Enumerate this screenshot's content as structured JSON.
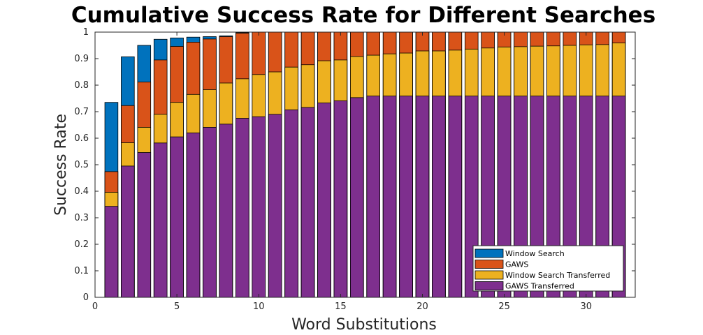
{
  "chart_data": {
    "type": "bar",
    "stacked": false,
    "overlay": true,
    "title": "Cumulative Success Rate for Different Searches",
    "xlabel": "Word Substitutions",
    "ylabel": "Success Rate",
    "xlim": [
      0,
      33
    ],
    "ylim": [
      0,
      1
    ],
    "xticks": [
      0,
      5,
      10,
      15,
      20,
      25,
      30
    ],
    "yticks": [
      0,
      0.1,
      0.2,
      0.3,
      0.4,
      0.5,
      0.6,
      0.7,
      0.8,
      0.9,
      1
    ],
    "grid": false,
    "legend_position": "bottom-right",
    "x": [
      1,
      2,
      3,
      4,
      5,
      6,
      7,
      8,
      9,
      10,
      11,
      12,
      13,
      14,
      15,
      16,
      17,
      18,
      19,
      20,
      21,
      22,
      23,
      24,
      25,
      26,
      27,
      28,
      29,
      30,
      31,
      32
    ],
    "series": [
      {
        "name": "Window Search",
        "color": "#0072BD",
        "values": [
          0.735,
          0.907,
          0.95,
          0.973,
          0.978,
          0.981,
          0.983,
          0.986,
          0.998,
          1,
          1,
          1,
          1,
          1,
          1,
          1,
          1,
          1,
          1,
          1,
          1,
          1,
          1,
          1,
          1,
          1,
          1,
          1,
          1,
          1,
          1,
          1
        ]
      },
      {
        "name": "GAWS",
        "color": "#D95319",
        "values": [
          0.474,
          0.723,
          0.812,
          0.895,
          0.946,
          0.962,
          0.974,
          0.983,
          0.996,
          1,
          1,
          1,
          1,
          1,
          1,
          1,
          1,
          1,
          1,
          1,
          1,
          1,
          1,
          1,
          1,
          1,
          1,
          1,
          1,
          1,
          1,
          1
        ]
      },
      {
        "name": "Window Search Transferred",
        "color": "#EDB120",
        "values": [
          0.396,
          0.583,
          0.641,
          0.69,
          0.735,
          0.765,
          0.783,
          0.808,
          0.824,
          0.84,
          0.85,
          0.868,
          0.877,
          0.892,
          0.895,
          0.908,
          0.913,
          0.918,
          0.921,
          0.929,
          0.929,
          0.932,
          0.936,
          0.94,
          0.944,
          0.945,
          0.947,
          0.948,
          0.95,
          0.952,
          0.953,
          0.959
        ]
      },
      {
        "name": "GAWS Transferred",
        "color": "#7E2F8E",
        "values": [
          0.343,
          0.495,
          0.546,
          0.582,
          0.605,
          0.62,
          0.641,
          0.653,
          0.675,
          0.681,
          0.69,
          0.707,
          0.716,
          0.733,
          0.741,
          0.753,
          0.759,
          0.759,
          0.759,
          0.759,
          0.759,
          0.759,
          0.759,
          0.759,
          0.759,
          0.759,
          0.759,
          0.759,
          0.759,
          0.759,
          0.759,
          0.759
        ]
      }
    ]
  }
}
